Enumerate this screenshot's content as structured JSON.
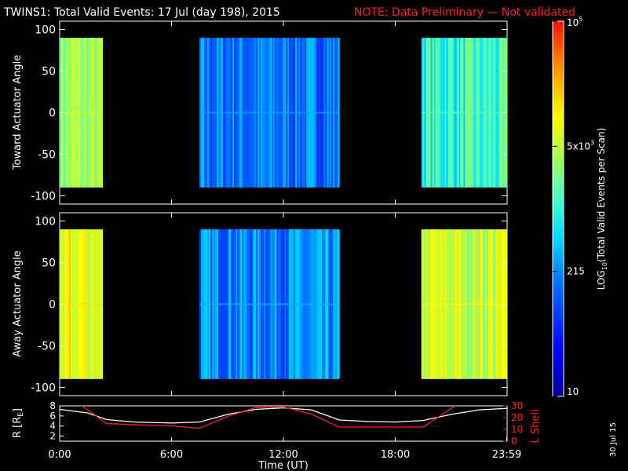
{
  "header": {
    "title": "TWINS1: Total Valid Events: 17 Jul (day 198), 2015",
    "note": "NOTE: Data Preliminary — Not validated"
  },
  "stamp": "30 Jul 15",
  "colors": {
    "note": "#ff2020",
    "lshell": "#ff2020",
    "r_line": "#ffffff",
    "axes": "#ffffff"
  },
  "chart_data": [
    {
      "type": "heatmap",
      "ylabel": "Toward Actuator Angle",
      "ylim": [
        -110,
        110
      ],
      "yticks": [
        "100",
        "50",
        "0",
        "-50",
        "-100"
      ],
      "ytick_values": [
        100,
        50,
        0,
        -50,
        -100
      ],
      "xlim_hours": [
        0,
        24
      ],
      "data_y_range": [
        -90,
        90
      ],
      "segments": [
        {
          "start": 0.0,
          "end": 2.3,
          "level": 0.62
        },
        {
          "start": 7.5,
          "end": 15.0,
          "level": 0.3
        },
        {
          "start": 19.4,
          "end": 24.0,
          "level": 0.5
        }
      ]
    },
    {
      "type": "heatmap",
      "ylabel": "Away Actuator Angle",
      "ylim": [
        -110,
        110
      ],
      "yticks": [
        "100",
        "50",
        "0",
        "-50",
        "-100"
      ],
      "ytick_values": [
        100,
        50,
        0,
        -50,
        -100
      ],
      "xlim_hours": [
        0,
        24
      ],
      "data_y_range": [
        -90,
        90
      ],
      "segments": [
        {
          "start": 0.0,
          "end": 2.3,
          "level": 0.72
        },
        {
          "start": 7.5,
          "end": 15.0,
          "level": 0.32
        },
        {
          "start": 19.4,
          "end": 24.0,
          "level": 0.68
        }
      ]
    },
    {
      "type": "line",
      "xlabel": "Time (UT)",
      "xticks": [
        "0:00",
        "6:00",
        "12:00",
        "18:00",
        "23:59"
      ],
      "xtick_hours": [
        0,
        6,
        12,
        18,
        23.98
      ],
      "ylabel_left": "R [R",
      "ylabel_left_sub": "E",
      "ylabel_left_close": "]",
      "ylim_left": [
        1,
        8
      ],
      "yticks_left": [
        "8",
        "6",
        "4",
        "2"
      ],
      "ytick_left_values": [
        8,
        6,
        4,
        2
      ],
      "ylabel_right": "L Shell",
      "ylim_right": [
        0,
        30
      ],
      "yticks_right": [
        "30",
        "20",
        "10",
        "0"
      ],
      "ytick_right_values": [
        30,
        20,
        10,
        0
      ],
      "series": [
        {
          "axis": "left",
          "x": [
            0,
            1.5,
            2.5,
            4,
            6,
            7.5,
            9,
            10.5,
            12,
            13.5,
            15,
            16.5,
            18,
            19.5,
            21,
            22.5,
            24
          ],
          "y": [
            7.3,
            6.6,
            5.3,
            4.8,
            4.6,
            4.8,
            6.3,
            7.3,
            7.6,
            7.2,
            5.2,
            4.9,
            4.8,
            5.1,
            6.3,
            7.2,
            7.5
          ]
        },
        {
          "axis": "right",
          "x": [
            1.2,
            2.5,
            4,
            6,
            7.5,
            9,
            10.5,
            12,
            13.5,
            15,
            17,
            19.5,
            21.2
          ],
          "y": [
            30,
            15,
            14,
            13,
            11,
            21,
            28.5,
            29,
            23,
            12,
            12,
            12,
            30
          ]
        }
      ]
    }
  ],
  "colorbar": {
    "label": "LOG10(Total Valid Events per Scan)",
    "label_main": "LOG",
    "label_sub": "10",
    "label_rest": "(Total Valid Events per Scan)",
    "ticks": [
      "10",
      "215",
      "5x10",
      "10"
    ],
    "tick_exps": [
      "",
      "",
      "3",
      "5"
    ],
    "tick_levels": [
      0,
      0.3333,
      0.6667,
      1
    ],
    "range": [
      10,
      100000
    ],
    "log_scale": true
  }
}
